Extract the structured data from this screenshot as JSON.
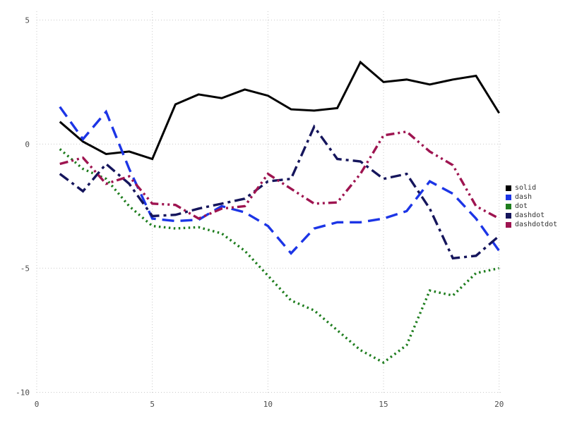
{
  "chart_data": {
    "type": "line",
    "title": "",
    "xlabel": "",
    "ylabel": "",
    "xlim": [
      0,
      20.1
    ],
    "ylim": [
      -10.1,
      5.35
    ],
    "xticks": [
      0,
      5,
      10,
      15,
      20
    ],
    "yticks": [
      -10,
      -5,
      0,
      5
    ],
    "grid": true,
    "grid_style": "dotted",
    "grid_color": "#c9c9c9",
    "legend_position": "right",
    "x": [
      1,
      2,
      3,
      4,
      5,
      6,
      7,
      8,
      9,
      10,
      11,
      12,
      13,
      14,
      15,
      16,
      17,
      18,
      19,
      20
    ],
    "series": [
      {
        "name": "solid",
        "color": "#000000",
        "dash": "solid",
        "values": [
          0.9,
          0.1,
          -0.4,
          -0.3,
          -0.6,
          1.6,
          2.0,
          1.85,
          2.2,
          1.95,
          1.4,
          1.35,
          1.45,
          3.3,
          2.5,
          2.6,
          2.4,
          2.6,
          2.75,
          1.25
        ]
      },
      {
        "name": "dash",
        "color": "#1c35e6",
        "dash": "dash",
        "values": [
          1.5,
          0.2,
          1.3,
          -1.0,
          -3.0,
          -3.1,
          -3.05,
          -2.5,
          -2.75,
          -3.3,
          -4.4,
          -3.4,
          -3.15,
          -3.15,
          -3.0,
          -2.7,
          -1.5,
          -2.0,
          -3.0,
          -4.3
        ]
      },
      {
        "name": "dot",
        "color": "#1e7d1e",
        "dash": "dot",
        "values": [
          -0.2,
          -1.0,
          -1.4,
          -2.5,
          -3.3,
          -3.4,
          -3.35,
          -3.6,
          -4.3,
          -5.3,
          -6.3,
          -6.7,
          -7.5,
          -8.3,
          -8.8,
          -8.1,
          -5.9,
          -6.1,
          -5.2,
          -5.0
        ]
      },
      {
        "name": "dashdot",
        "color": "#15155c",
        "dash": "dashdot",
        "values": [
          -1.2,
          -1.9,
          -0.8,
          -1.6,
          -2.9,
          -2.85,
          -2.6,
          -2.4,
          -2.2,
          -1.5,
          -1.4,
          0.7,
          -0.6,
          -0.7,
          -1.4,
          -1.2,
          -2.6,
          -4.6,
          -4.5,
          -3.7
        ]
      },
      {
        "name": "dashdotdot",
        "color": "#9e1450",
        "dash": "dashdotdot",
        "values": [
          -0.8,
          -0.55,
          -1.6,
          -1.3,
          -2.4,
          -2.45,
          -3.0,
          -2.6,
          -2.5,
          -1.2,
          -1.8,
          -2.4,
          -2.35,
          -1.2,
          0.35,
          0.5,
          -0.3,
          -0.85,
          -2.5,
          -3.0
        ]
      }
    ],
    "legend": [
      "solid",
      "dash",
      "dot",
      "dashdot",
      "dashdotdot"
    ]
  }
}
